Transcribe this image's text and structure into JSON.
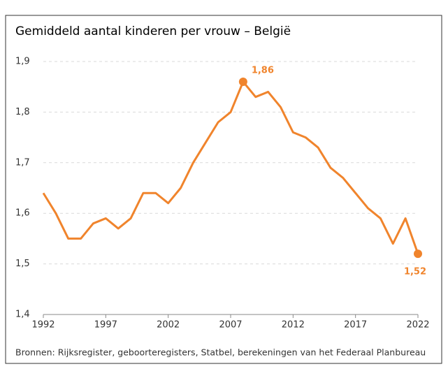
{
  "chart_data": {
    "type": "line",
    "title": "Gemiddeld aantal kinderen per vrouw – België",
    "source": "Bronnen: Rijksregister, geboorteregisters, Statbel, berekeningen van het Federaal Planbureau",
    "x": [
      1992,
      1993,
      1994,
      1995,
      1996,
      1997,
      1998,
      1999,
      2000,
      2001,
      2002,
      2003,
      2004,
      2005,
      2006,
      2007,
      2008,
      2009,
      2010,
      2011,
      2012,
      2013,
      2014,
      2015,
      2016,
      2017,
      2018,
      2019,
      2020,
      2021,
      2022
    ],
    "values": [
      1.64,
      1.6,
      1.55,
      1.55,
      1.58,
      1.59,
      1.57,
      1.59,
      1.64,
      1.64,
      1.62,
      1.65,
      1.7,
      1.74,
      1.78,
      1.8,
      1.86,
      1.83,
      1.84,
      1.81,
      1.76,
      1.75,
      1.73,
      1.69,
      1.67,
      1.64,
      1.61,
      1.59,
      1.54,
      1.59,
      1.52
    ],
    "color": "#f0842c",
    "xlim": [
      1992,
      2022
    ],
    "xticks": [
      1992,
      1997,
      2002,
      2007,
      2012,
      2017,
      2022
    ],
    "ylim": [
      1.4,
      1.9
    ],
    "yticks": [
      {
        "value": 1.4,
        "label": "1,4"
      },
      {
        "value": 1.5,
        "label": "1,5"
      },
      {
        "value": 1.6,
        "label": "1,6"
      },
      {
        "value": 1.7,
        "label": "1,7"
      },
      {
        "value": 1.8,
        "label": "1,8"
      },
      {
        "value": 1.9,
        "label": "1,9"
      }
    ],
    "grid": true,
    "annotations": [
      {
        "x": 2008,
        "y": 1.86,
        "label": "1,86"
      },
      {
        "x": 2022,
        "y": 1.52,
        "label": "1,52"
      }
    ]
  }
}
